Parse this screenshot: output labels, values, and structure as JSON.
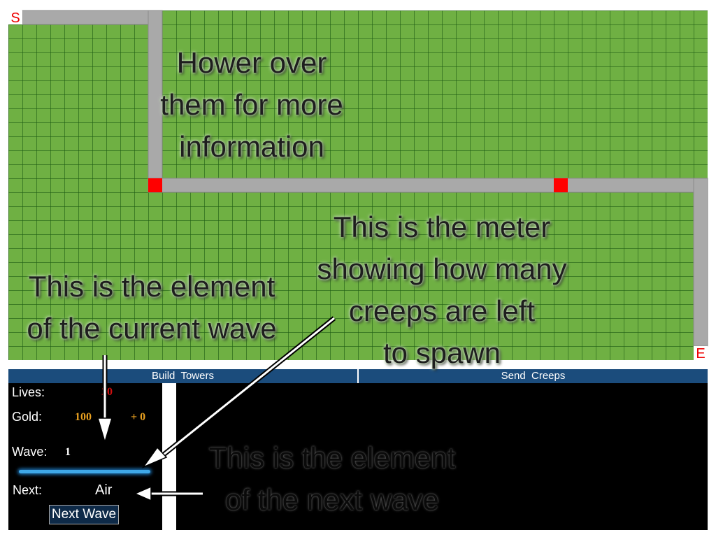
{
  "map": {
    "start": "S",
    "end": "E"
  },
  "tabs": [
    "Build  Towers",
    "Send  Creeps"
  ],
  "stats": {
    "lives": {
      "label": "Lives:",
      "value": 20
    },
    "gold": {
      "label": "Gold:",
      "value": 100,
      "income": "+ 0"
    },
    "wave": {
      "label": "Wave:",
      "value": 1
    },
    "next": {
      "label": "Next:",
      "value": "Air"
    }
  },
  "button": "Next Wave",
  "annotations": [
    {
      "lines": [
        "Hower over",
        "them for more",
        "information"
      ]
    },
    {
      "lines": [
        "This is the meter",
        "showing how many",
        "creeps are left",
        "to spawn"
      ]
    },
    {
      "lines": [
        "This is the element",
        "of the current wave"
      ]
    },
    {
      "lines": [
        "This is the element",
        "of the next wave"
      ]
    }
  ]
}
